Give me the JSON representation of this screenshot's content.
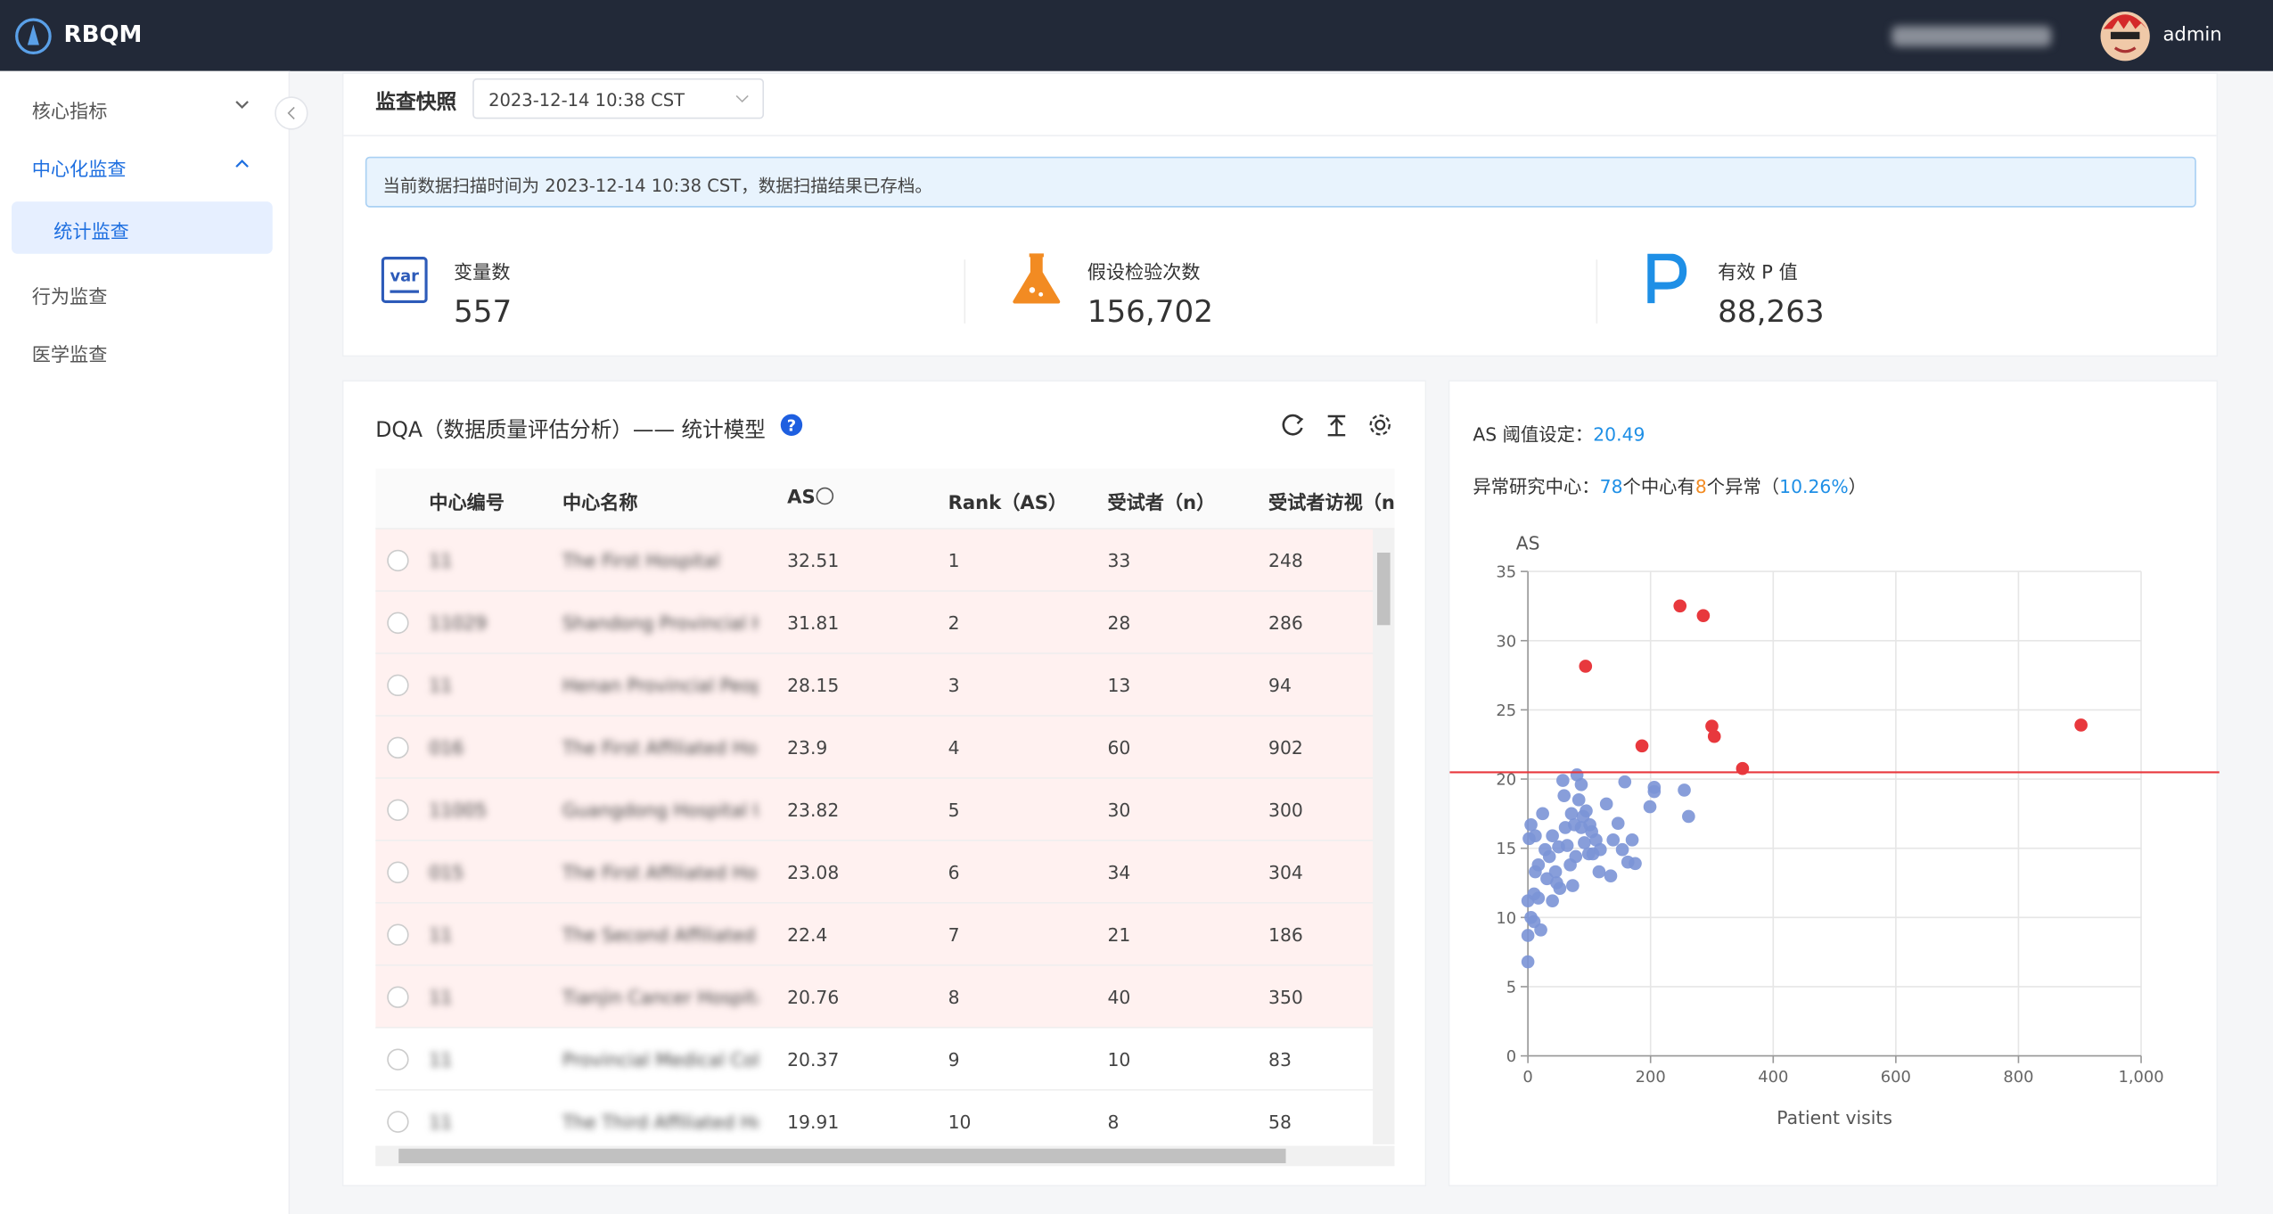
{
  "header": {
    "brand": "RBQM",
    "user": "admin"
  },
  "sidebar": {
    "items": [
      "核心指标",
      "中心化监查",
      "统计监查",
      "行为监查",
      "医学监查"
    ]
  },
  "snapshot": {
    "title": "监查快照",
    "selected": "2023-12-14 10:38 CST",
    "notice": "当前数据扫描时间为 2023-12-14 10:38 CST，数据扫描结果已存档。"
  },
  "stats": [
    {
      "label": "变量数",
      "value": "557"
    },
    {
      "label": "假设检验次数",
      "value": "156,702"
    },
    {
      "label": "有效 P 值",
      "value": "88,263"
    }
  ],
  "table": {
    "title": "DQA（数据质量评估分析）—— 统计模型",
    "columns": [
      "中心编号",
      "中心名称",
      "AS",
      "Rank（AS）",
      "受试者（n）",
      "受试者访视（n"
    ],
    "rows": [
      [
        "11",
        "The First Hospital",
        "32.51",
        "1",
        "33",
        "248"
      ],
      [
        "11029",
        "Shandong Provincial Hosp",
        "31.81",
        "2",
        "28",
        "286"
      ],
      [
        "11",
        "Henan Provincial People's Peo...",
        "28.15",
        "3",
        "13",
        "94"
      ],
      [
        "016",
        "The First Affiliated Hosp",
        "23.9",
        "4",
        "60",
        "902"
      ],
      [
        "11005",
        "Guangdong Hospital Univ",
        "23.82",
        "5",
        "30",
        "300"
      ],
      [
        "015",
        "The First Affiliated Hosp",
        "23.08",
        "6",
        "34",
        "304"
      ],
      [
        "11",
        "The Second Affiliated Hos",
        "22.4",
        "7",
        "21",
        "186"
      ],
      [
        "11",
        "Tianjin Cancer Hospital",
        "20.76",
        "8",
        "40",
        "350"
      ],
      [
        "11",
        "Provincial Medical Colle...",
        "20.37",
        "9",
        "10",
        "83"
      ],
      [
        "11",
        "The Third Affiliated Hos...",
        "19.91",
        "10",
        "8",
        "58"
      ]
    ]
  },
  "chart_data": {
    "type": "scatter",
    "threshold_label": "AS 阈值设定：",
    "threshold": 20.49,
    "abnormal": {
      "label": "异常研究中心：",
      "total": "78",
      "mid": "个中心有",
      "count": "8",
      "end": "个异常（",
      "percent": "10.26%",
      "close": "）"
    },
    "y_label": "AS",
    "x_label": "Patient visits",
    "xlim": [
      0,
      1000
    ],
    "xticks": [
      0,
      200,
      400,
      600,
      800,
      {
        "value": 1000,
        "label": "1,000"
      }
    ],
    "ylim": [
      0,
      35
    ],
    "yticks": [
      0,
      5,
      10,
      15,
      20,
      25,
      30,
      35
    ],
    "grid": true,
    "series": [
      {
        "color": "#e8383d",
        "x": [
          248,
          286,
          94,
          902,
          300,
          304,
          186,
          350
        ],
        "y": [
          32.51,
          31.81,
          28.15,
          23.9,
          23.82,
          23.08,
          22.4,
          20.76
        ]
      },
      {
        "color": "#7b93d6",
        "x": [
          0,
          0,
          5,
          10,
          0,
          10,
          17,
          2,
          5,
          12,
          24,
          28,
          35,
          40,
          45,
          52,
          40,
          57,
          61,
          64,
          69,
          71,
          76,
          78,
          80,
          83,
          87,
          87,
          92,
          95,
          99,
          104,
          106,
          111,
          118,
          128,
          135,
          139,
          147,
          154,
          158,
          163,
          170,
          175,
          199,
          206,
          206,
          255,
          262,
          17,
          31,
          47,
          59,
          73,
          90,
          116,
          12,
          21,
          50,
          101
        ],
        "y": [
          6.8,
          8.7,
          10,
          9.7,
          11.2,
          11.7,
          11.4,
          15.7,
          16.7,
          15.9,
          17.5,
          14.9,
          14.4,
          15.9,
          13.3,
          12.1,
          11.2,
          19.9,
          16.5,
          15.2,
          13.8,
          17.5,
          16.7,
          14.4,
          20.3,
          18.5,
          19.6,
          16.5,
          15.4,
          17.7,
          14.6,
          16.2,
          14.6,
          15.6,
          14.9,
          18.2,
          13.0,
          15.6,
          16.8,
          14.9,
          19.8,
          14.0,
          15.6,
          13.9,
          18.0,
          19.4,
          19.1,
          19.2,
          17.3,
          13.8,
          12.8,
          12.5,
          18.8,
          12.3,
          17.3,
          13.3,
          13.3,
          9.1,
          15.1,
          16.7
        ]
      }
    ]
  }
}
